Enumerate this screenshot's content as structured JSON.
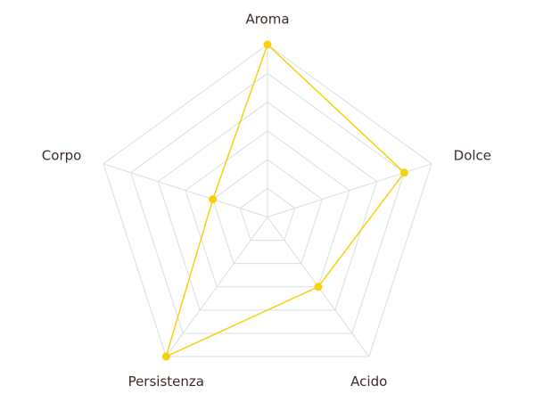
{
  "chart_data": {
    "type": "radar",
    "categories": [
      "Aroma",
      "Dolce",
      "Acido",
      "Persistenza",
      "Corpo"
    ],
    "values": [
      6,
      5,
      3,
      6,
      2
    ],
    "color": "#f6d10c",
    "grid_color": "#d6e0e1",
    "ylim": [
      0,
      6
    ],
    "yticks": [
      1,
      2,
      3,
      4,
      5,
      6
    ],
    "grid": true
  }
}
